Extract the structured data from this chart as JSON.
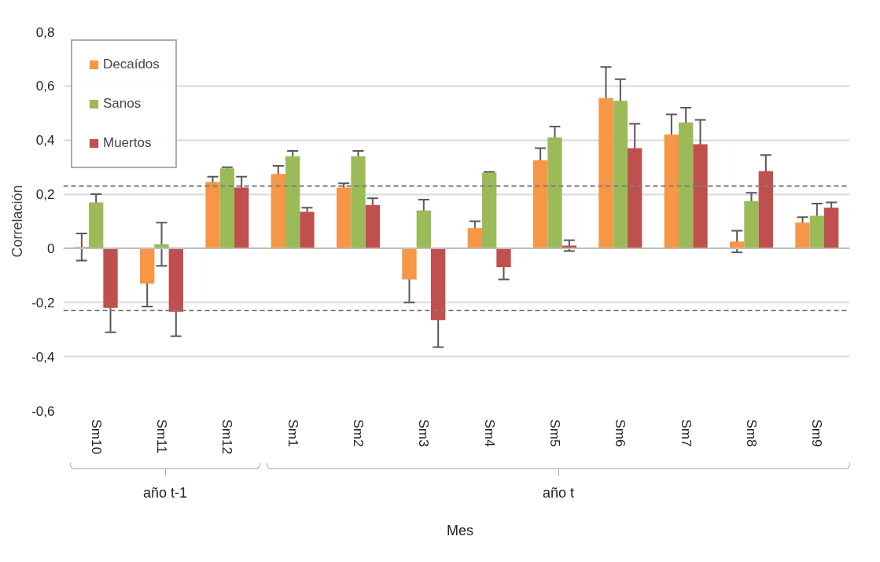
{
  "chart_data": {
    "type": "bar",
    "xlabel": "Mes",
    "ylabel": "Correlación",
    "categories": [
      "Sm10",
      "Sm11",
      "Sm12",
      "Sm1",
      "Sm2",
      "Sm3",
      "Sm4",
      "Sm5",
      "Sm6",
      "Sm7",
      "Sm8",
      "Sm9"
    ],
    "series": [
      {
        "name": "Decaídos",
        "color": "#f79646",
        "values": [
          0.005,
          -0.13,
          0.245,
          0.275,
          0.225,
          -0.115,
          0.075,
          0.325,
          0.555,
          0.42,
          0.025,
          0.095
        ],
        "errors": [
          0.05,
          0.085,
          0.02,
          0.03,
          0.015,
          0.085,
          0.025,
          0.045,
          0.115,
          0.075,
          0.04,
          0.02
        ]
      },
      {
        "name": "Sanos",
        "color": "#9bbb59",
        "values": [
          0.17,
          0.015,
          0.295,
          0.34,
          0.34,
          0.14,
          0.28,
          0.41,
          0.545,
          0.465,
          0.175,
          0.12
        ],
        "errors": [
          0.03,
          0.08,
          0.005,
          0.02,
          0.02,
          0.04,
          0.002,
          0.04,
          0.08,
          0.055,
          0.03,
          0.045
        ]
      },
      {
        "name": "Muertos",
        "color": "#c0504d",
        "values": [
          -0.22,
          -0.235,
          0.225,
          0.135,
          0.16,
          -0.265,
          -0.07,
          0.01,
          0.37,
          0.385,
          0.285,
          0.15
        ],
        "errors": [
          0.09,
          0.09,
          0.04,
          0.015,
          0.025,
          0.1,
          0.045,
          0.02,
          0.09,
          0.09,
          0.06,
          0.02
        ]
      }
    ],
    "ylim": [
      -0.6,
      0.8
    ],
    "yticks": [
      {
        "value": -0.6,
        "label": "-0,6"
      },
      {
        "value": -0.4,
        "label": "-0,4"
      },
      {
        "value": -0.2,
        "label": "-0,2"
      },
      0,
      {
        "value": 0.2,
        "label": "0,2"
      },
      {
        "value": 0.4,
        "label": "0,4"
      },
      {
        "value": 0.6,
        "label": "0,6"
      },
      {
        "value": 0.8,
        "label": "0,8"
      }
    ],
    "ref_lines": [
      {
        "axis": "y",
        "value": 0.23,
        "color": "#808080",
        "line_style": "dashed"
      },
      {
        "axis": "y",
        "value": -0.23,
        "color": "#808080",
        "line_style": "dashed"
      }
    ],
    "annotations": [
      "año t-1",
      "año t"
    ],
    "grid": "y",
    "legend": "top left"
  }
}
